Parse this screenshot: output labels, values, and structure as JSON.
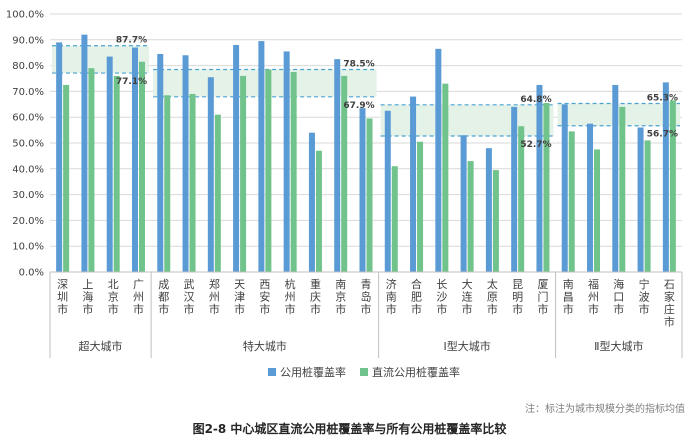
{
  "colors": {
    "public": "#5b9bd5",
    "dc": "#70c38a",
    "band": "#e4f2e7",
    "dash": "#4aa3d3",
    "grid": "#d9d9d9",
    "text": "#404040"
  },
  "note": "注：标注为城市规模分类的指标均值",
  "caption": "图2-8 中心城区直流公用桩覆盖率与所有公用桩覆盖率比较",
  "chart_data": {
    "type": "bar",
    "y_axis": {
      "min": 0,
      "max": 100,
      "step": 10,
      "unit": "%",
      "tick_labels": [
        "0.0%",
        "10.0%",
        "20.0%",
        "30.0%",
        "40.0%",
        "50.0%",
        "60.0%",
        "70.0%",
        "80.0%",
        "90.0%",
        "100.0%"
      ]
    },
    "grid": true,
    "legend_position": "bottom",
    "series": [
      {
        "name": "公用桩覆盖率",
        "color": "#5b9bd5"
      },
      {
        "name": "直流公用桩覆盖率",
        "color": "#70c38a"
      }
    ],
    "categories": [
      {
        "name": "深圳市",
        "public": 89,
        "dc": 72.5
      },
      {
        "name": "上海市",
        "public": 92,
        "dc": 79
      },
      {
        "name": "北京市",
        "public": 83.5,
        "dc": 76
      },
      {
        "name": "广州市",
        "public": 87,
        "dc": 81.5
      },
      {
        "name": "成都市",
        "public": 84.5,
        "dc": 68.5
      },
      {
        "name": "武汉市",
        "public": 84,
        "dc": 69
      },
      {
        "name": "郑州市",
        "public": 75.5,
        "dc": 61
      },
      {
        "name": "天津市",
        "public": 88,
        "dc": 76
      },
      {
        "name": "西安市",
        "public": 89.5,
        "dc": 78.5
      },
      {
        "name": "杭州市",
        "public": 85.5,
        "dc": 77.5
      },
      {
        "name": "重庆市",
        "public": 54,
        "dc": 47
      },
      {
        "name": "南京市",
        "public": 82.5,
        "dc": 76
      },
      {
        "name": "青岛市",
        "public": 63.5,
        "dc": 59.5
      },
      {
        "name": "济南市",
        "public": 62.5,
        "dc": 41
      },
      {
        "name": "合肥市",
        "public": 68,
        "dc": 50.5
      },
      {
        "name": "长沙市",
        "public": 86.5,
        "dc": 73
      },
      {
        "name": "大连市",
        "public": 53,
        "dc": 43
      },
      {
        "name": "太原市",
        "public": 48,
        "dc": 39.5
      },
      {
        "name": "昆明市",
        "public": 64,
        "dc": 56.5
      },
      {
        "name": "厦门市",
        "public": 72.5,
        "dc": 65.5
      },
      {
        "name": "南昌市",
        "public": 65,
        "dc": 54.5
      },
      {
        "name": "福州市",
        "public": 57.5,
        "dc": 47.5
      },
      {
        "name": "海口市",
        "public": 72.5,
        "dc": 64
      },
      {
        "name": "宁波市",
        "public": 56,
        "dc": 51
      },
      {
        "name": "石家庄市",
        "public": 73.5,
        "dc": 66.5
      }
    ],
    "groups": [
      {
        "name": "超大城市",
        "start": 0,
        "end": 3,
        "avg_public": 87.7,
        "avg_dc": 77.1,
        "avg_public_label": "87.7%",
        "avg_dc_label": "77.1%"
      },
      {
        "name": "特大城市",
        "start": 4,
        "end": 12,
        "avg_public": 78.5,
        "avg_dc": 67.9,
        "avg_public_label": "78.5%",
        "avg_dc_label": "67.9%"
      },
      {
        "name": "Ⅰ型大城市",
        "start": 13,
        "end": 19,
        "avg_public": 64.8,
        "avg_dc": 52.7,
        "avg_public_label": "64.8%",
        "avg_dc_label": "52.7%"
      },
      {
        "name": "Ⅱ型大城市",
        "start": 20,
        "end": 24,
        "avg_public": 65.3,
        "avg_dc": 56.7,
        "avg_public_label": "65.3%",
        "avg_dc_label": "56.7%"
      }
    ]
  }
}
